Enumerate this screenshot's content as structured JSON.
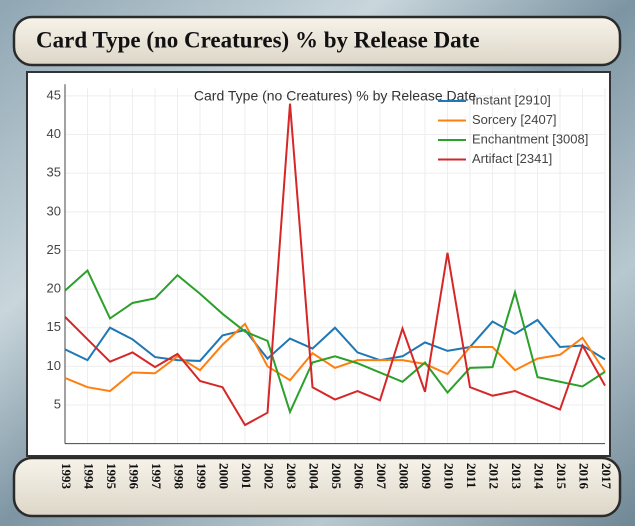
{
  "header": {
    "title": "Card Type (no Creatures) % by Release Date"
  },
  "chart_data": {
    "type": "line",
    "title": "Card Type (no Creatures) % by Release Date",
    "categories": [
      "1993",
      "1994",
      "1995",
      "1996",
      "1997",
      "1998",
      "1999",
      "2000",
      "2001",
      "2002",
      "2003",
      "2004",
      "2005",
      "2006",
      "2007",
      "2008",
      "2009",
      "2010",
      "2011",
      "2012",
      "2013",
      "2014",
      "2015",
      "2016",
      "2017"
    ],
    "series": [
      {
        "name": "Instant [2910]",
        "color": "#1f77b4",
        "values": [
          12.2,
          10.8,
          15,
          13.5,
          11.2,
          10.8,
          10.7,
          14,
          14.7,
          11,
          13.6,
          12.3,
          15,
          11.8,
          10.8,
          11.3,
          13.1,
          12,
          12.5,
          15.8,
          14.2,
          16,
          12.5,
          12.7,
          10.9
        ]
      },
      {
        "name": "Sorcery [2407]",
        "color": "#ff7f0e",
        "values": [
          8.5,
          7.3,
          6.8,
          9.2,
          9.1,
          11.3,
          9.5,
          12.8,
          15.5,
          10,
          8.2,
          11.7,
          9.8,
          10.8,
          10.8,
          10.8,
          10.3,
          9,
          12.5,
          12.5,
          9.5,
          11,
          11.5,
          13.7,
          9.3
        ]
      },
      {
        "name": "Enchantment [3008]",
        "color": "#2ca02c",
        "values": [
          19.8,
          22.4,
          16.2,
          18.2,
          18.8,
          21.8,
          19.4,
          16.8,
          14.5,
          13.3,
          4.1,
          10.5,
          11.3,
          10.4,
          9.2,
          8,
          10.5,
          6.6,
          9.8,
          9.9,
          19.6,
          8.6,
          8,
          7.4,
          9.3
        ]
      },
      {
        "name": "Artifact [2341]",
        "color": "#d62728",
        "values": [
          16.4,
          13.5,
          10.6,
          11.8,
          9.9,
          11.6,
          8.1,
          7.3,
          2.4,
          4,
          44,
          7.3,
          5.7,
          6.8,
          5.6,
          14.9,
          6.7,
          24.7,
          7.3,
          6.2,
          6.8,
          5.6,
          4.4,
          12.7,
          7.5
        ]
      }
    ],
    "ylim": [
      0,
      46
    ],
    "yticks": [
      5,
      10,
      15,
      20,
      25,
      30,
      35,
      40,
      45
    ],
    "grid": true,
    "legend": "top-right"
  }
}
